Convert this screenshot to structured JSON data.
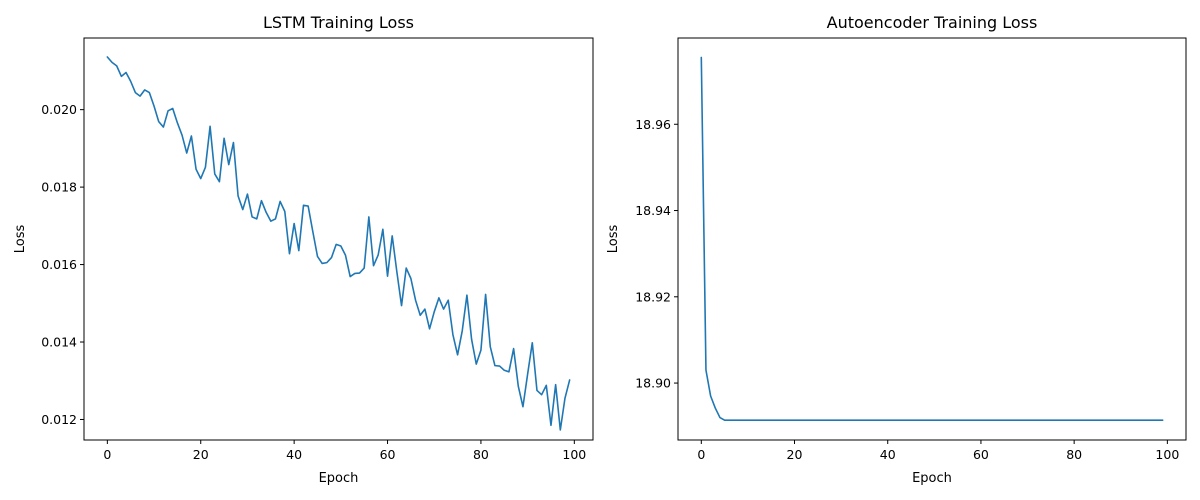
{
  "chart_data": [
    {
      "type": "line",
      "title": "LSTM Training Loss",
      "xlabel": "Epoch",
      "ylabel": "Loss",
      "grid": false,
      "xlim": [
        -5,
        104
      ],
      "ylim": [
        0.01147,
        0.02185
      ],
      "xticks": [
        0,
        20,
        40,
        60,
        80,
        100
      ],
      "xtick_labels": [
        "0",
        "20",
        "40",
        "60",
        "80",
        "100"
      ],
      "yticks": [
        0.012,
        0.014,
        0.016,
        0.018,
        0.02
      ],
      "ytick_labels": [
        "0.012",
        "0.014",
        "0.016",
        "0.018",
        "0.020"
      ],
      "series": [
        {
          "color": "#1f77b4",
          "x": [
            0,
            1,
            2,
            3,
            4,
            5,
            6,
            7,
            8,
            9,
            10,
            11,
            12,
            13,
            14,
            15,
            16,
            17,
            18,
            19,
            20,
            21,
            22,
            23,
            24,
            25,
            26,
            27,
            28,
            29,
            30,
            31,
            32,
            33,
            34,
            35,
            36,
            37,
            38,
            39,
            40,
            41,
            42,
            43,
            44,
            45,
            46,
            47,
            48,
            49,
            50,
            51,
            52,
            53,
            54,
            55,
            56,
            57,
            58,
            59,
            60,
            61,
            62,
            63,
            64,
            65,
            66,
            67,
            68,
            69,
            70,
            71,
            72,
            73,
            74,
            75,
            76,
            77,
            78,
            79,
            80,
            81,
            82,
            83,
            84,
            85,
            86,
            87,
            88,
            89,
            90,
            91,
            92,
            93,
            94,
            95,
            96,
            97,
            98,
            99
          ],
          "y": [
            0.02136,
            0.02122,
            0.02113,
            0.02086,
            0.02096,
            0.02073,
            0.02044,
            0.02035,
            0.02051,
            0.02044,
            0.02009,
            0.01969,
            0.01955,
            0.01997,
            0.02003,
            0.01966,
            0.01934,
            0.01888,
            0.01932,
            0.01846,
            0.01822,
            0.01851,
            0.01957,
            0.01834,
            0.01814,
            0.01926,
            0.01858,
            0.01915,
            0.01777,
            0.01742,
            0.01782,
            0.01723,
            0.01718,
            0.01765,
            0.01735,
            0.01712,
            0.01718,
            0.01763,
            0.01737,
            0.01628,
            0.01706,
            0.01636,
            0.01753,
            0.01751,
            0.01685,
            0.01621,
            0.01603,
            0.01605,
            0.01618,
            0.01652,
            0.01648,
            0.01624,
            0.01569,
            0.01577,
            0.01578,
            0.01591,
            0.01723,
            0.01597,
            0.01625,
            0.01691,
            0.0157,
            0.01674,
            0.01581,
            0.01494,
            0.01591,
            0.01564,
            0.01508,
            0.01469,
            0.01485,
            0.01434,
            0.01478,
            0.01514,
            0.01485,
            0.01508,
            0.01419,
            0.01367,
            0.01429,
            0.01521,
            0.01407,
            0.01343,
            0.01379,
            0.01523,
            0.01388,
            0.01339,
            0.01338,
            0.01327,
            0.01323,
            0.01383,
            0.01286,
            0.01233,
            0.01317,
            0.01398,
            0.01275,
            0.01264,
            0.01288,
            0.01185,
            0.0129,
            0.01173,
            0.01255,
            0.01302
          ]
        }
      ]
    },
    {
      "type": "line",
      "title": "Autoencoder Training Loss",
      "xlabel": "Epoch",
      "ylabel": "Loss",
      "grid": false,
      "xlim": [
        -5,
        104
      ],
      "ylim": [
        18.8868,
        18.98
      ],
      "xticks": [
        0,
        20,
        40,
        60,
        80,
        100
      ],
      "xtick_labels": [
        "0",
        "20",
        "40",
        "60",
        "80",
        "100"
      ],
      "yticks": [
        18.9,
        18.92,
        18.94,
        18.96
      ],
      "ytick_labels": [
        "18.90",
        "18.92",
        "18.94",
        "18.96"
      ],
      "series": [
        {
          "color": "#1f77b4",
          "x": [
            0,
            1,
            2,
            3,
            4,
            5,
            6,
            7,
            8,
            9,
            10,
            15,
            20,
            30,
            40,
            50,
            60,
            70,
            80,
            90,
            99
          ],
          "y": [
            18.9755,
            18.903,
            18.897,
            18.8942,
            18.892,
            18.8914,
            18.8914,
            18.8914,
            18.8914,
            18.8914,
            18.8914,
            18.8914,
            18.8914,
            18.8914,
            18.8914,
            18.8914,
            18.8914,
            18.8914,
            18.8914,
            18.8914,
            18.8914
          ]
        }
      ]
    }
  ]
}
